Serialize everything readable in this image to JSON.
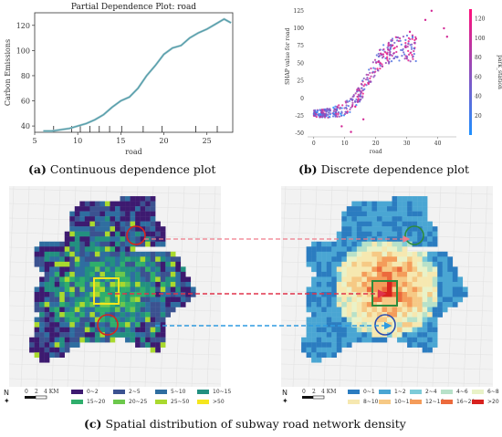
{
  "figure": {
    "caption_a": {
      "label": "(a)",
      "text": "Continuous dependence plot"
    },
    "caption_b": {
      "label": "(b)",
      "text": "Discrete dependence plot"
    },
    "caption_c": {
      "label": "(c)",
      "text": "Spatial distribution of subway road network density"
    },
    "colors": {
      "pdp_line": "#4f9aa8",
      "arrow_red": "#e0334b",
      "arrow_blue": "#2f9be0",
      "arrow_pink": "#f07b8a"
    }
  },
  "chart_data": [
    {
      "type": "line",
      "title": "Partial Dependence Plot: road",
      "xlabel": "road",
      "ylabel": "Carbon Emissions",
      "xlim": [
        5,
        28
      ],
      "ylim": [
        35,
        130
      ],
      "xticks": [
        "5",
        "10",
        "15",
        "20",
        "25"
      ],
      "yticks": [
        "40",
        "60",
        "80",
        "100",
        "120"
      ],
      "x": [
        6,
        7,
        8,
        9,
        10,
        11,
        12,
        13,
        14,
        15,
        16,
        17,
        18,
        19,
        20,
        21,
        22,
        23,
        24,
        25,
        26,
        27,
        27.8
      ],
      "series": [
        {
          "values": [
            36,
            36,
            37,
            38,
            40,
            42,
            45,
            49,
            55,
            60,
            63,
            70,
            80,
            88,
            97,
            102,
            104,
            110,
            114,
            117,
            121,
            125,
            122
          ]
        }
      ],
      "rug_x": [
        7.2,
        9.3,
        10.3,
        11.4,
        12.5,
        13.7,
        15.1,
        17.6,
        19.8,
        23.7,
        26.2
      ]
    },
    {
      "type": "scatter",
      "title": "",
      "xlabel": "road",
      "ylabel": "SHAP value for road",
      "colorbar_label": "park_station",
      "xlim": [
        -2,
        46
      ],
      "ylim": [
        -55,
        130
      ],
      "xticks": [
        "0",
        "10",
        "20",
        "30",
        "40"
      ],
      "yticks": [
        "-50",
        "-25",
        "0",
        "25",
        "50",
        "75",
        "100",
        "125"
      ],
      "colorbar_ticks": [
        "20",
        "40",
        "60",
        "80",
        "100",
        "120"
      ],
      "colorbar_range": [
        0,
        130
      ],
      "colors": {
        "low": "#1e90ff",
        "high": "#ff0f7b"
      },
      "trend": [
        [
          0,
          -22
        ],
        [
          6,
          -20
        ],
        [
          10,
          -15
        ],
        [
          13,
          -5
        ],
        [
          16,
          15
        ],
        [
          19,
          40
        ],
        [
          22,
          60
        ],
        [
          26,
          70
        ],
        [
          30,
          72
        ],
        [
          35,
          74
        ]
      ],
      "outliers": [
        [
          38,
          125
        ],
        [
          42,
          100
        ],
        [
          43,
          88
        ],
        [
          36,
          112
        ],
        [
          33,
          85
        ],
        [
          31,
          95
        ],
        [
          9,
          -40
        ],
        [
          12,
          -48
        ],
        [
          16,
          -30
        ]
      ]
    }
  ],
  "maps": {
    "left": {
      "compass": "N",
      "scale": [
        "0",
        "2",
        "4 KM"
      ],
      "legend": [
        {
          "label": "0~2",
          "color": "#3d1a70"
        },
        {
          "label": "2~5",
          "color": "#3b5290"
        },
        {
          "label": "5~10",
          "color": "#2f6ea0"
        },
        {
          "label": "10~15",
          "color": "#239080"
        },
        {
          "label": "15~20",
          "color": "#2fae6c"
        },
        {
          "label": "20~25",
          "color": "#6cc84c"
        },
        {
          "label": "25~50",
          "color": "#a9d92e"
        },
        {
          "label": ">50",
          "color": "#f5e61e"
        }
      ]
    },
    "right": {
      "compass": "N",
      "scale": [
        "0",
        "2",
        "4 KM"
      ],
      "legend": [
        {
          "label": "0~1",
          "color": "#2b7cc0"
        },
        {
          "label": "1~2",
          "color": "#4aa6d3"
        },
        {
          "label": "2~4",
          "color": "#7ccbd8"
        },
        {
          "label": "4~6",
          "color": "#b7e1c9"
        },
        {
          "label": "6~8",
          "color": "#e9f2c8"
        },
        {
          "label": "8~10",
          "color": "#f6e8b0"
        },
        {
          "label": "10~12",
          "color": "#f6c985"
        },
        {
          "label": "12~16",
          "color": "#f49c5a"
        },
        {
          "label": "16~20",
          "color": "#ec6a3c"
        },
        {
          "label": ">20",
          "color": "#d8221e"
        }
      ]
    }
  }
}
